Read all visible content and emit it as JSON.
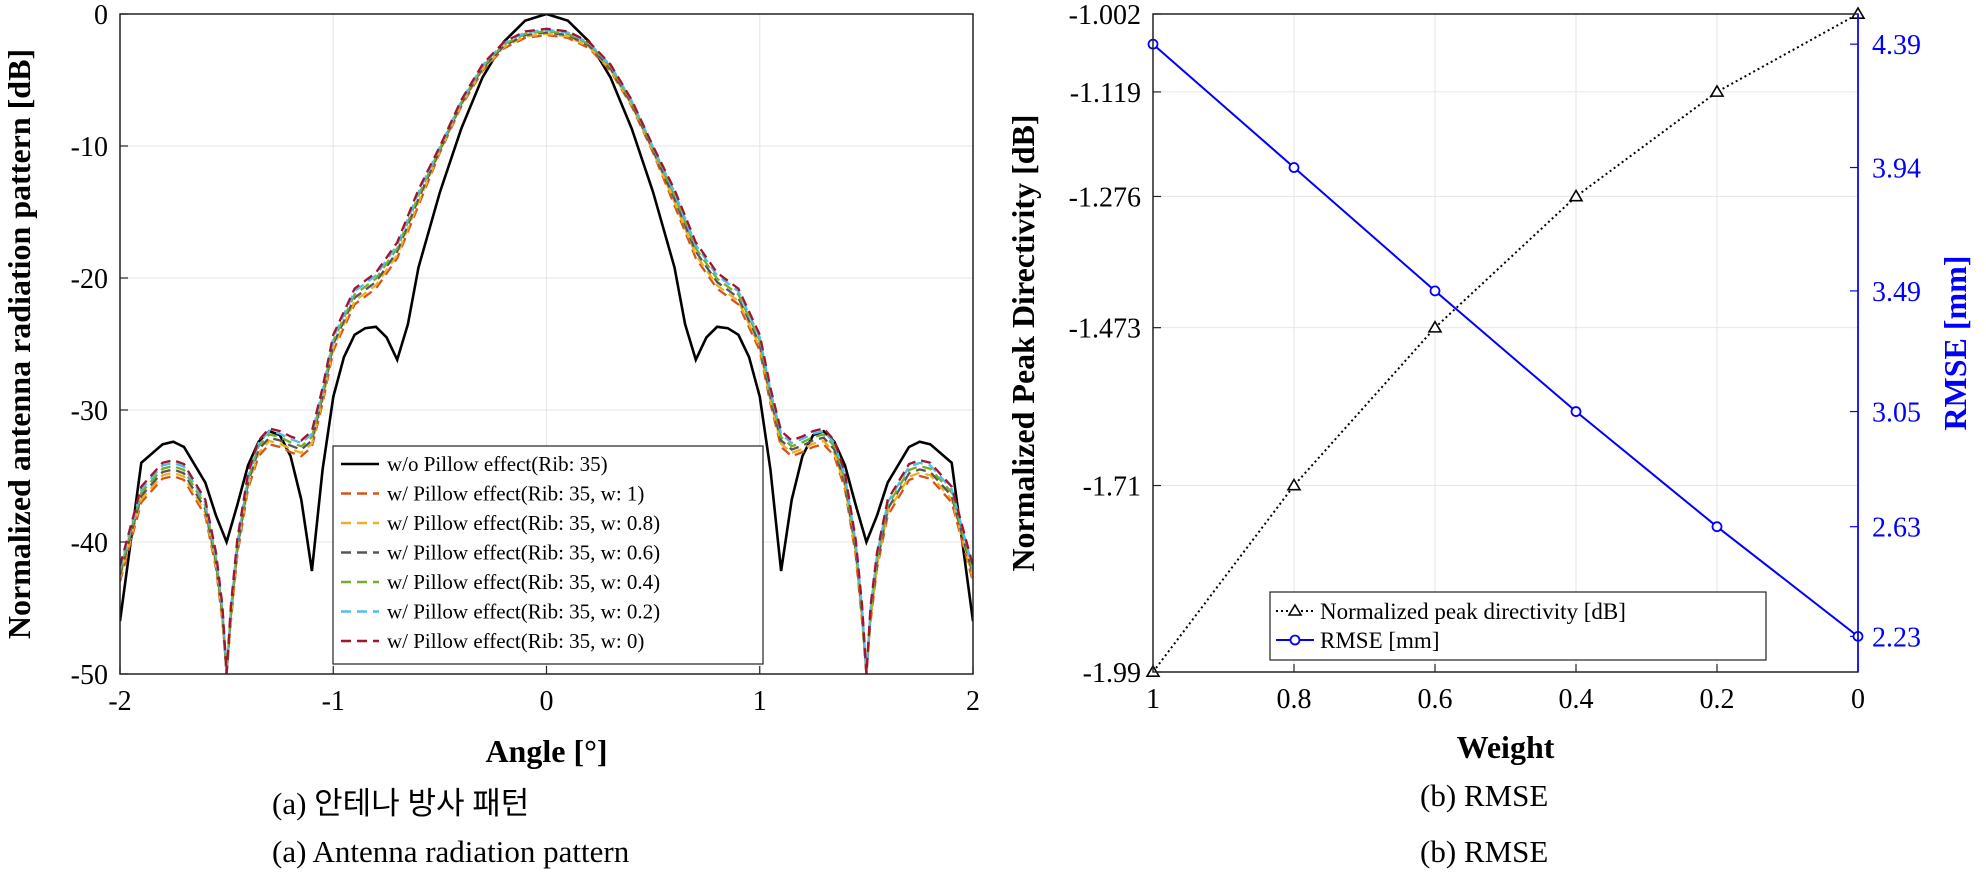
{
  "chart_data": [
    {
      "type": "line",
      "xlabel": "Angle [°]",
      "ylabel": "Normalized antenna radiation pattern [dB]",
      "xlim": [
        -2,
        2
      ],
      "ylim": [
        -50,
        0
      ],
      "xticks": [
        "-2",
        "-1",
        "0",
        "1",
        "2"
      ],
      "yticks": [
        "0",
        "-10",
        "-20",
        "-30",
        "-40",
        "-50"
      ],
      "grid": true,
      "legend_position": "bottom-center",
      "series": [
        {
          "name": "w/o Pillow effect(Rib: 35)",
          "color": "#000000",
          "style": "solid",
          "x": [
            -2,
            -1.9,
            -1.8,
            -1.75,
            -1.7,
            -1.6,
            -1.55,
            -1.5,
            -1.45,
            -1.4,
            -1.35,
            -1.3,
            -1.25,
            -1.2,
            -1.15,
            -1.1,
            -1.05,
            -1.0,
            -0.95,
            -0.9,
            -0.85,
            -0.8,
            -0.75,
            -0.7,
            -0.65,
            -0.6,
            -0.5,
            -0.4,
            -0.3,
            -0.2,
            -0.1,
            0,
            0.1,
            0.2,
            0.3,
            0.4,
            0.5,
            0.6,
            0.65,
            0.7,
            0.75,
            0.8,
            0.85,
            0.9,
            0.95,
            1.0,
            1.05,
            1.1,
            1.15,
            1.2,
            1.25,
            1.3,
            1.35,
            1.4,
            1.45,
            1.5,
            1.55,
            1.6,
            1.7,
            1.75,
            1.8,
            1.9,
            2.0
          ],
          "y": [
            -46,
            -34,
            -32.6,
            -32.4,
            -32.8,
            -35.5,
            -38,
            -40,
            -37.2,
            -34.2,
            -32.4,
            -31.6,
            -31.9,
            -33.5,
            -36.8,
            -42.2,
            -34.5,
            -29,
            -26,
            -24.3,
            -23.8,
            -23.7,
            -24.5,
            -26.2,
            -23.5,
            -19.2,
            -13.5,
            -8.7,
            -4.8,
            -2.1,
            -0.5,
            0,
            -0.5,
            -2.1,
            -4.8,
            -8.7,
            -13.5,
            -19.2,
            -23.5,
            -26.2,
            -24.5,
            -23.7,
            -23.8,
            -24.3,
            -26,
            -29,
            -34.5,
            -42.2,
            -36.8,
            -33.5,
            -31.9,
            -31.6,
            -32.4,
            -34.2,
            -37.2,
            -40,
            -38,
            -35.5,
            -32.8,
            -32.4,
            -32.6,
            -34,
            -46
          ]
        },
        {
          "name": "w/ Pillow effect(Rib: 35, w: 1)",
          "color": "#d95319",
          "style": "dashed",
          "offset": 0
        },
        {
          "name": "w/ Pillow effect(Rib: 35, w: 0.8)",
          "color": "#edb120",
          "style": "dashed",
          "offset": 0.25
        },
        {
          "name": "w/ Pillow effect(Rib: 35, w: 0.6)",
          "color": "#555555",
          "style": "dashed",
          "offset": 0.5
        },
        {
          "name": "w/ Pillow effect(Rib: 35, w: 0.4)",
          "color": "#77ac30",
          "style": "dashed",
          "offset": 0.75
        },
        {
          "name": "w/ Pillow effect(Rib: 35, w: 0.2)",
          "color": "#4dbeee",
          "style": "dashed",
          "offset": 1.0
        },
        {
          "name": "w/ Pillow effect(Rib: 35, w: 0)",
          "color": "#a2142f",
          "style": "dashed",
          "offset": 1.2
        }
      ],
      "pillow_base": {
        "x": [
          -2,
          -1.9,
          -1.8,
          -1.75,
          -1.7,
          -1.6,
          -1.55,
          -1.52,
          -1.5,
          -1.48,
          -1.45,
          -1.4,
          -1.35,
          -1.3,
          -1.25,
          -1.2,
          -1.15,
          -1.1,
          -1.05,
          -1.0,
          -0.9,
          -0.8,
          -0.7,
          -0.6,
          -0.5,
          -0.4,
          -0.3,
          -0.2,
          -0.1,
          0,
          0.1,
          0.2,
          0.3,
          0.4,
          0.5,
          0.6,
          0.7,
          0.8,
          0.9,
          1.0,
          1.05,
          1.1,
          1.15,
          1.2,
          1.25,
          1.3,
          1.35,
          1.4,
          1.45,
          1.48,
          1.5,
          1.52,
          1.55,
          1.6,
          1.7,
          1.75,
          1.8,
          1.9,
          2.0
        ],
        "y": [
          -43,
          -37,
          -35.2,
          -35,
          -35.3,
          -38,
          -42,
          -46,
          -50,
          -46,
          -41,
          -36,
          -33.5,
          -32.6,
          -32.8,
          -33.2,
          -33.5,
          -32.8,
          -29.5,
          -25.5,
          -22,
          -20.8,
          -18.5,
          -14.5,
          -10.5,
          -7,
          -4.3,
          -2.6,
          -1.8,
          -1.6,
          -1.8,
          -2.6,
          -4.3,
          -7,
          -10.5,
          -14.5,
          -18.5,
          -20.8,
          -22,
          -25.5,
          -29.5,
          -32.8,
          -33.5,
          -33.2,
          -32.8,
          -32.6,
          -33.5,
          -36,
          -41,
          -46,
          -50,
          -46,
          -42,
          -38,
          -35.3,
          -35,
          -35.2,
          -37,
          -43
        ]
      }
    },
    {
      "type": "line",
      "xlabel": "Weight",
      "ylabel": "Normalized Peak Directivity [dB]",
      "y2label": "RMSE [mm]",
      "x": [
        1,
        0.8,
        0.6,
        0.4,
        0.2,
        0
      ],
      "xticks": [
        "1",
        "0.8",
        "0.6",
        "0.4",
        "0.2",
        "0"
      ],
      "yticks": [
        "-1.002",
        "-1.119",
        "-1.276",
        "-1.473",
        "-1.71",
        "-1.99"
      ],
      "y2ticks": [
        "4.39",
        "3.94",
        "3.49",
        "3.05",
        "2.63",
        "2.23"
      ],
      "ylim": [
        -1.99,
        -1.002
      ],
      "y2lim": [
        2.1,
        4.5
      ],
      "grid": true,
      "legend_position": "bottom-center",
      "series": [
        {
          "name": "Normalized peak directivity [dB]",
          "color": "#000000",
          "style": "dotted",
          "marker": "triangle",
          "axis": "left",
          "values": [
            -1.99,
            -1.71,
            -1.473,
            -1.276,
            -1.119,
            -1.002
          ]
        },
        {
          "name": "RMSE [mm]",
          "color": "#0000ff",
          "style": "solid",
          "marker": "circle",
          "axis": "right",
          "values": [
            4.39,
            3.94,
            3.49,
            3.05,
            2.63,
            2.23
          ]
        }
      ]
    }
  ],
  "captions": {
    "a_korean": "(a) 안테나 방사 패턴",
    "a_english": "(a) Antenna radiation pattern",
    "b_korean": "(b) RMSE",
    "b_english": "(b) RMSE"
  }
}
